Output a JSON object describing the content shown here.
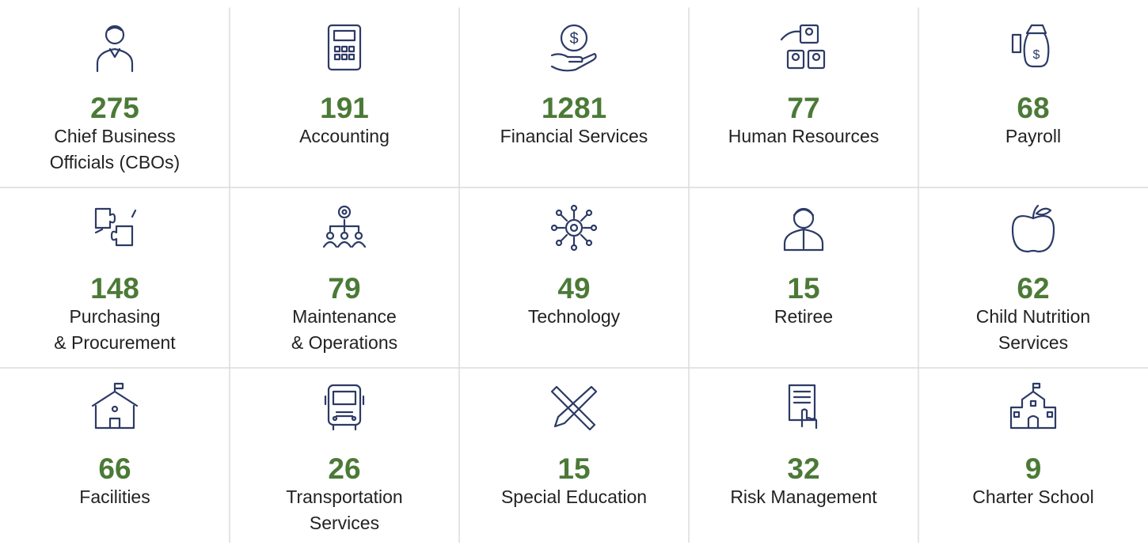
{
  "items": [
    {
      "count": "275",
      "lines": [
        "Chief Business",
        "Officials (CBOs)"
      ]
    },
    {
      "count": "191",
      "lines": [
        "Accounting"
      ]
    },
    {
      "count": "1281",
      "lines": [
        "Financial Services"
      ]
    },
    {
      "count": "77",
      "lines": [
        "Human Resources"
      ]
    },
    {
      "count": "68",
      "lines": [
        "Payroll"
      ]
    },
    {
      "count": "148",
      "lines": [
        "Purchasing",
        "& Procurement"
      ]
    },
    {
      "count": "79",
      "lines": [
        "Maintenance",
        "& Operations"
      ]
    },
    {
      "count": "49",
      "lines": [
        "Technology"
      ]
    },
    {
      "count": "15",
      "lines": [
        "Retiree"
      ]
    },
    {
      "count": "62",
      "lines": [
        "Child Nutrition",
        "Services"
      ]
    },
    {
      "count": "66",
      "lines": [
        "Facilities"
      ]
    },
    {
      "count": "26",
      "lines": [
        "Transportation",
        "Services"
      ]
    },
    {
      "count": "15",
      "lines": [
        "Special Education"
      ]
    },
    {
      "count": "32",
      "lines": [
        "Risk Management"
      ]
    },
    {
      "count": "9",
      "lines": [
        "Charter School"
      ]
    }
  ]
}
